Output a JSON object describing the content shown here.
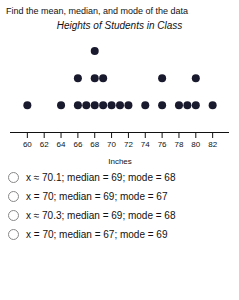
{
  "chart_data": {
    "type": "dot",
    "title": "Heights of Students in Class",
    "subtitle": "Find the mean, median, and mode of the data",
    "xlabel": "Inches",
    "x": [
      60,
      64,
      66,
      67,
      68,
      69,
      70,
      71,
      72,
      74,
      76,
      78,
      79,
      80,
      82
    ],
    "values": [
      1,
      1,
      2,
      1,
      3,
      2,
      1,
      1,
      1,
      1,
      2,
      1,
      1,
      2,
      1
    ],
    "color": "#1a1a2e",
    "xlim": [
      58,
      84
    ],
    "xticks": [
      60,
      62,
      64,
      66,
      68,
      70,
      72,
      74,
      76,
      78,
      80,
      82
    ],
    "grid": false,
    "tick_labels": "x",
    "annotations": [
      "x ≈ 70.1; median = 69; mode = 68",
      "x = 70; median = 69; mode = 67",
      "x ≈ 70.3; median = 69; mode = 68",
      "x = 70; median = 67; mode = 69"
    ]
  }
}
